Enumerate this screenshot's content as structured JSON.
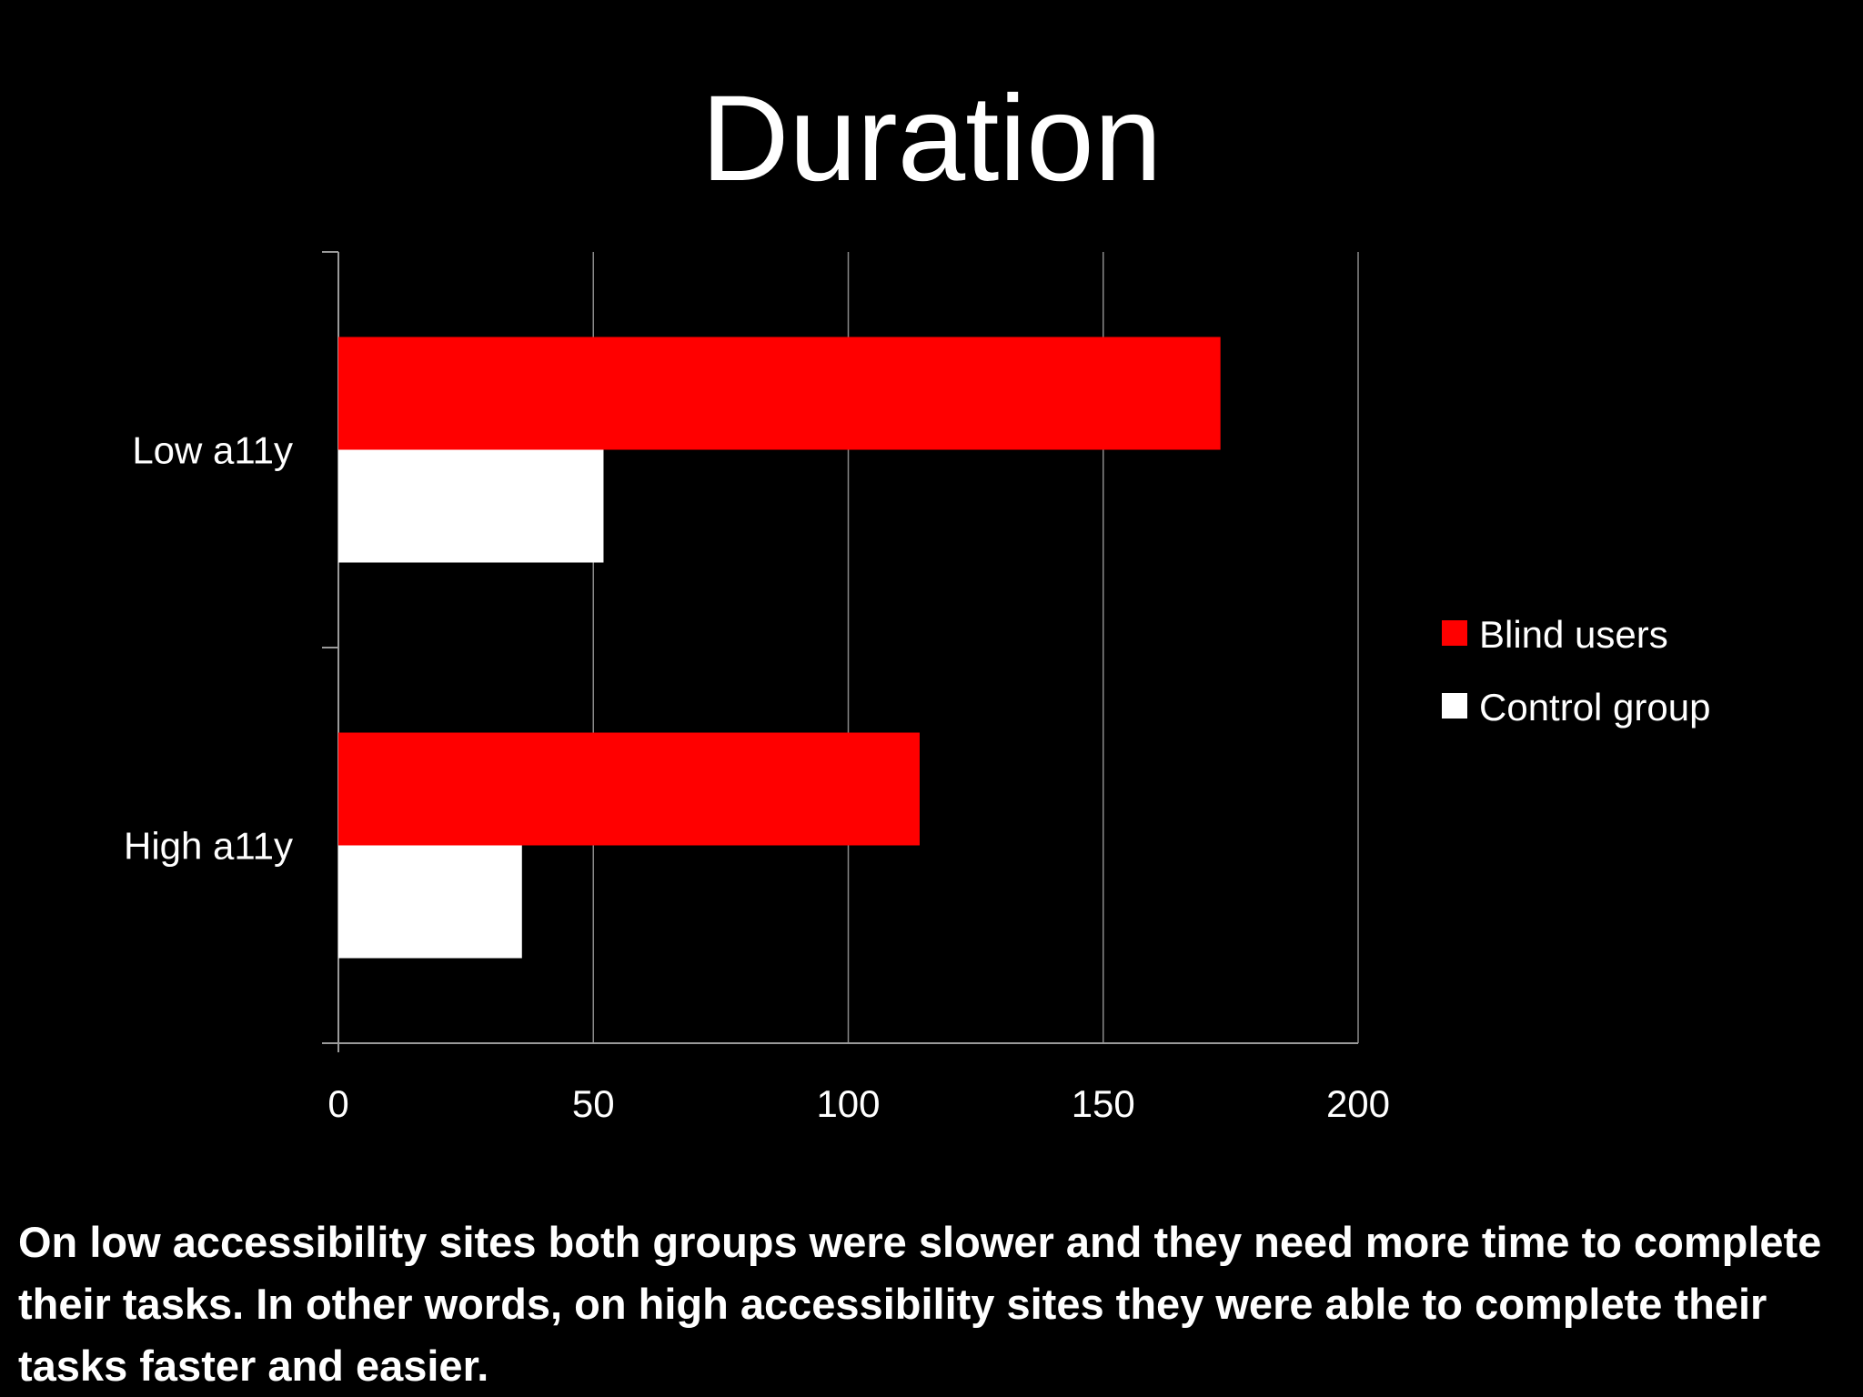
{
  "slide": {
    "title": "Duration",
    "caption": "On low accessibility sites both groups were slower and they need more time to complete their tasks. In other words, on high accessibility sites they were able to complete their tasks faster and easier."
  },
  "chart_data": {
    "type": "bar",
    "orientation": "horizontal",
    "title": "Duration",
    "categories": [
      "Low a11y",
      "High a11y"
    ],
    "series": [
      {
        "name": "Blind users",
        "color": "#ff0000",
        "values": [
          173,
          114
        ]
      },
      {
        "name": "Control group",
        "color": "#ffffff",
        "values": [
          52,
          36
        ]
      }
    ],
    "xlim": [
      0,
      200
    ],
    "xticks": [
      0,
      50,
      100,
      150,
      200
    ],
    "grid": true,
    "legend_position": "right"
  }
}
